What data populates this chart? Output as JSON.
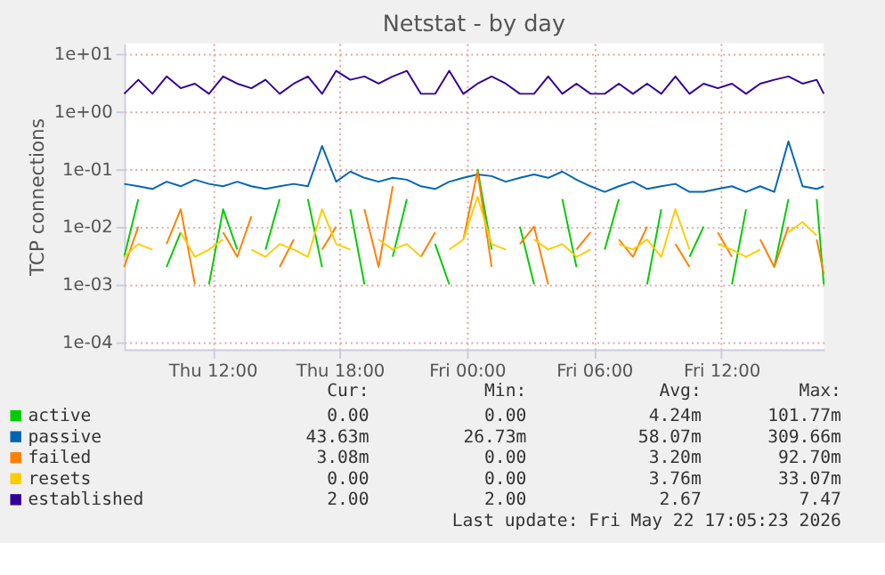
{
  "chart_data": {
    "type": "line",
    "title": "Netstat - by day",
    "ylabel": "TCP connections",
    "log": true,
    "grid": true,
    "legend": "bottom",
    "line_style": "solid",
    "x": [
      "2026-05-21T07:50",
      "2026-05-21T08:30",
      "2026-05-21T09:10",
      "2026-05-21T09:50",
      "2026-05-21T10:30",
      "2026-05-21T11:10",
      "2026-05-21T11:50",
      "2026-05-21T12:30",
      "2026-05-21T13:10",
      "2026-05-21T13:50",
      "2026-05-21T14:30",
      "2026-05-21T15:10",
      "2026-05-21T15:50",
      "2026-05-21T16:30",
      "2026-05-21T17:10",
      "2026-05-21T17:50",
      "2026-05-21T18:30",
      "2026-05-21T19:10",
      "2026-05-21T19:50",
      "2026-05-21T20:30",
      "2026-05-21T21:10",
      "2026-05-21T21:50",
      "2026-05-21T22:30",
      "2026-05-21T23:10",
      "2026-05-21T23:50",
      "2026-05-22T00:30",
      "2026-05-22T01:10",
      "2026-05-22T01:50",
      "2026-05-22T02:30",
      "2026-05-22T03:10",
      "2026-05-22T03:50",
      "2026-05-22T04:30",
      "2026-05-22T05:10",
      "2026-05-22T05:50",
      "2026-05-22T06:30",
      "2026-05-22T07:10",
      "2026-05-22T07:50",
      "2026-05-22T08:30",
      "2026-05-22T09:10",
      "2026-05-22T09:50",
      "2026-05-22T10:30",
      "2026-05-22T11:10",
      "2026-05-22T11:50",
      "2026-05-22T12:30",
      "2026-05-22T13:10",
      "2026-05-22T13:50",
      "2026-05-22T14:30",
      "2026-05-22T15:10",
      "2026-05-22T15:50",
      "2026-05-22T16:30",
      "2026-05-22T16:50"
    ],
    "xlim": [
      "2026-05-21T07:50",
      "2026-05-22T16:50"
    ],
    "xticks": [
      {
        "value": "2026-05-21T12:00",
        "label": "Thu 12:00"
      },
      {
        "value": "2026-05-21T18:00",
        "label": "Thu 18:00"
      },
      {
        "value": "2026-05-22T00:00",
        "label": "Fri 00:00"
      },
      {
        "value": "2026-05-22T06:00",
        "label": "Fri 06:00"
      },
      {
        "value": "2026-05-22T12:00",
        "label": "Fri 12:00"
      }
    ],
    "ylim": [
      7.5e-05,
      15
    ],
    "yticks": [
      {
        "value": 0.0001,
        "label": "1e-04"
      },
      {
        "value": 0.001,
        "label": "1e-03"
      },
      {
        "value": 0.01,
        "label": "1e-02"
      },
      {
        "value": 0.1,
        "label": "1e-01"
      },
      {
        "value": 1,
        "label": "1e+00"
      },
      {
        "value": 10,
        "label": "1e+01"
      }
    ],
    "series": [
      {
        "name": "active",
        "color": "#00cc00",
        "values": [
          0.003,
          0.03,
          null,
          0.002,
          0.008,
          null,
          0.001,
          0.02,
          0.004,
          null,
          0.004,
          0.03,
          null,
          0.03,
          0.002,
          null,
          0.02,
          0.001,
          null,
          0.003,
          0.03,
          null,
          0.005,
          0.001,
          null,
          0.1,
          0.004,
          null,
          0.01,
          0.001,
          null,
          0.03,
          0.002,
          null,
          0.004,
          0.03,
          null,
          0.001,
          0.02,
          null,
          0.003,
          0.01,
          null,
          0.001,
          0.02,
          null,
          0.002,
          0.03,
          null,
          0.03,
          0.001
        ]
      },
      {
        "name": "passive",
        "color": "#0066b3",
        "values": [
          0.055,
          0.05,
          0.045,
          0.06,
          0.05,
          0.065,
          0.055,
          0.05,
          0.06,
          0.05,
          0.045,
          0.05,
          0.055,
          0.05,
          0.25,
          0.06,
          0.09,
          0.07,
          0.06,
          0.07,
          0.065,
          0.05,
          0.045,
          0.06,
          0.07,
          0.08,
          0.075,
          0.06,
          0.07,
          0.08,
          0.07,
          0.09,
          0.065,
          0.05,
          0.04,
          0.05,
          0.06,
          0.045,
          0.05,
          0.055,
          0.04,
          0.04,
          0.045,
          0.05,
          0.04,
          0.05,
          0.04,
          0.3,
          0.05,
          0.045,
          0.05
        ]
      },
      {
        "name": "failed",
        "color": "#ff8000",
        "values": [
          0.002,
          0.01,
          null,
          0.005,
          0.02,
          0.001,
          null,
          0.008,
          0.003,
          0.015,
          null,
          0.002,
          0.006,
          null,
          0.004,
          0.01,
          null,
          0.02,
          0.002,
          0.05,
          null,
          0.003,
          0.008,
          null,
          0.006,
          0.09,
          0.002,
          null,
          0.005,
          0.01,
          0.001,
          null,
          0.004,
          0.008,
          null,
          0.006,
          0.003,
          0.01,
          null,
          0.005,
          0.002,
          null,
          0.008,
          0.003,
          null,
          0.006,
          0.002,
          0.01,
          null,
          0.006,
          0.0015
        ]
      },
      {
        "name": "resets",
        "color": "#ffcc00",
        "values": [
          0.003,
          0.005,
          0.004,
          null,
          0.008,
          0.003,
          0.004,
          0.006,
          null,
          0.004,
          0.003,
          0.005,
          0.004,
          0.003,
          0.02,
          0.005,
          0.004,
          null,
          0.006,
          0.004,
          0.005,
          0.003,
          null,
          0.004,
          0.006,
          0.033,
          0.005,
          0.004,
          null,
          0.006,
          0.004,
          0.005,
          0.003,
          0.004,
          null,
          0.005,
          0.004,
          0.006,
          0.003,
          0.02,
          0.004,
          null,
          0.005,
          0.004,
          0.003,
          0.004,
          null,
          0.008,
          0.012,
          0.007,
          null
        ]
      },
      {
        "name": "established",
        "color": "#330099",
        "values": [
          2,
          3.5,
          2,
          4,
          2.5,
          3,
          2,
          4,
          3,
          2.5,
          3.5,
          2,
          3,
          4,
          2,
          5,
          3.5,
          4,
          3,
          4,
          5,
          2,
          2,
          5,
          2,
          3,
          4,
          3,
          2,
          2,
          4,
          2,
          3,
          2,
          2,
          3,
          2,
          3,
          2,
          4,
          2,
          3,
          2.5,
          3,
          2,
          3,
          3.5,
          4,
          3,
          3.5,
          2
        ]
      }
    ],
    "annotations": [
      "Cur:",
      "Min:",
      "Avg:",
      "Max:",
      "0.00",
      "0.00",
      "4.24m",
      "101.77m",
      "43.63m",
      "26.73m",
      "58.07m",
      "309.66m",
      "3.08m",
      "0.00",
      "3.20m",
      "92.70m",
      "0.00",
      "0.00",
      "3.76m",
      "33.07m",
      "2.00",
      "2.00",
      "2.67",
      "7.47",
      "Last update: Fri May 22 17:05:23 2026"
    ]
  }
}
